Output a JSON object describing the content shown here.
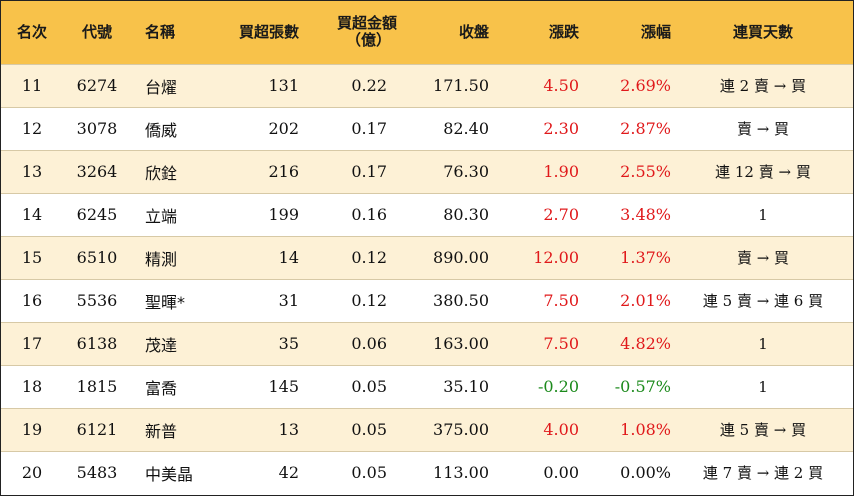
{
  "headers": {
    "rank": "名次",
    "code": "代號",
    "name": "名稱",
    "net_lots": "買超張數",
    "net_amount_line1": "買超金額",
    "net_amount_line2": "（億）",
    "close": "收盤",
    "change": "漲跌",
    "change_pct": "漲幅",
    "consec_days": "連買天數"
  },
  "rows": [
    {
      "rank": "11",
      "code": "6274",
      "name": "台燿",
      "net_lots": "131",
      "net_amount": "0.22",
      "close": "171.50",
      "change": "4.50",
      "change_pct": "2.69%",
      "trend": "up",
      "consec_days": "連 2 賣 → 買"
    },
    {
      "rank": "12",
      "code": "3078",
      "name": "僑威",
      "net_lots": "202",
      "net_amount": "0.17",
      "close": "82.40",
      "change": "2.30",
      "change_pct": "2.87%",
      "trend": "up",
      "consec_days": "賣 → 買"
    },
    {
      "rank": "13",
      "code": "3264",
      "name": "欣銓",
      "net_lots": "216",
      "net_amount": "0.17",
      "close": "76.30",
      "change": "1.90",
      "change_pct": "2.55%",
      "trend": "up",
      "consec_days": "連 12 賣 → 買"
    },
    {
      "rank": "14",
      "code": "6245",
      "name": "立端",
      "net_lots": "199",
      "net_amount": "0.16",
      "close": "80.30",
      "change": "2.70",
      "change_pct": "3.48%",
      "trend": "up",
      "consec_days": "1"
    },
    {
      "rank": "15",
      "code": "6510",
      "name": "精測",
      "net_lots": "14",
      "net_amount": "0.12",
      "close": "890.00",
      "change": "12.00",
      "change_pct": "1.37%",
      "trend": "up",
      "consec_days": "賣 → 買"
    },
    {
      "rank": "16",
      "code": "5536",
      "name": "聖暉*",
      "net_lots": "31",
      "net_amount": "0.12",
      "close": "380.50",
      "change": "7.50",
      "change_pct": "2.01%",
      "trend": "up",
      "consec_days": "連 5 賣 → 連 6 買"
    },
    {
      "rank": "17",
      "code": "6138",
      "name": "茂達",
      "net_lots": "35",
      "net_amount": "0.06",
      "close": "163.00",
      "change": "7.50",
      "change_pct": "4.82%",
      "trend": "up",
      "consec_days": "1"
    },
    {
      "rank": "18",
      "code": "1815",
      "name": "富喬",
      "net_lots": "145",
      "net_amount": "0.05",
      "close": "35.10",
      "change": "-0.20",
      "change_pct": "-0.57%",
      "trend": "down",
      "consec_days": "1"
    },
    {
      "rank": "19",
      "code": "6121",
      "name": "新普",
      "net_lots": "13",
      "net_amount": "0.05",
      "close": "375.00",
      "change": "4.00",
      "change_pct": "1.08%",
      "trend": "up",
      "consec_days": "連 5 賣 → 買"
    },
    {
      "rank": "20",
      "code": "5483",
      "name": "中美晶",
      "net_lots": "42",
      "net_amount": "0.05",
      "close": "113.00",
      "change": "0.00",
      "change_pct": "0.00%",
      "trend": "flat",
      "consec_days": "連 7 賣 → 連 2 買"
    }
  ],
  "colors": {
    "header_bg": "#f8c24a",
    "row_alt_bg": "#fdf1d6",
    "up": "#e0191b",
    "down": "#1c8a1c"
  }
}
